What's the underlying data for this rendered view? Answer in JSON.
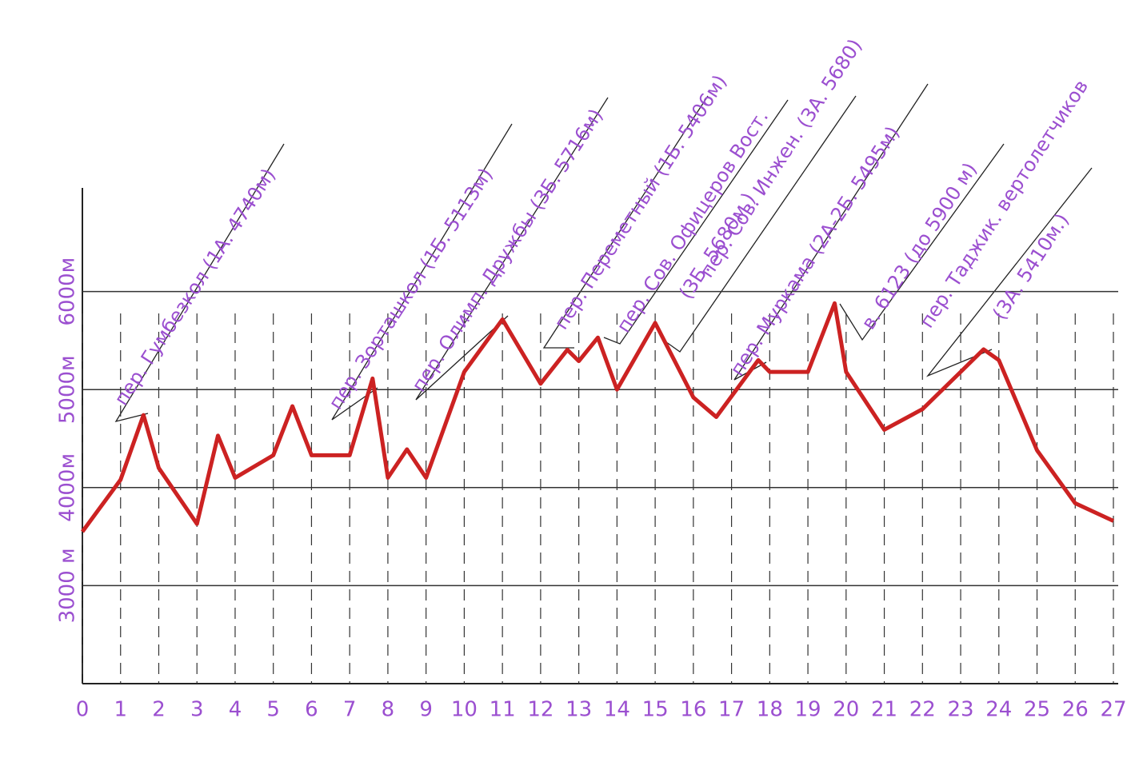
{
  "chart_data": {
    "type": "line",
    "x": [
      0,
      1,
      1.6,
      2,
      3,
      3.55,
      4,
      5,
      5.5,
      6,
      7,
      7.6,
      8,
      8.5,
      9,
      10,
      11,
      12,
      12.7,
      13,
      13.5,
      14,
      15,
      16,
      16.6,
      17.7,
      18,
      19,
      19.7,
      20,
      21,
      22,
      23,
      23.6,
      24,
      25,
      26,
      27
    ],
    "values": [
      3550,
      4080,
      4740,
      4200,
      3630,
      4530,
      4100,
      4330,
      4830,
      4330,
      4330,
      5113,
      4100,
      4390,
      4100,
      5180,
      5716,
      5060,
      5406,
      5290,
      5530,
      5000,
      5680,
      4920,
      4720,
      5300,
      5180,
      5180,
      5880,
      5180,
      4590,
      4800,
      5180,
      5410,
      5300,
      4380,
      3840,
      3660
    ],
    "color": "#cc2222",
    "xlim": [
      0,
      27
    ],
    "xticks": [
      0,
      1,
      2,
      3,
      4,
      5,
      6,
      7,
      8,
      9,
      10,
      11,
      12,
      13,
      14,
      15,
      16,
      17,
      18,
      19,
      20,
      21,
      22,
      23,
      24,
      25,
      26,
      27
    ],
    "ylim": [
      2000,
      7000
    ],
    "yticks": [
      {
        "value": 3000,
        "label": "3000 м"
      },
      {
        "value": 4000,
        "label": "4000м"
      },
      {
        "value": 5000,
        "label": "5000м"
      },
      {
        "value": 6000,
        "label": "6000м"
      }
    ],
    "grid": true,
    "annotations": [
      "пер. Гумбезкол (1А. 4740м)",
      "пер. Зорташкол (1Б. 5113м)",
      "пер. Олимп. Дружбы (3Б. 5716м)",
      "пер. Переметный (1Б. 5406м)",
      "пер. Сов. Офицеров Вост.",
      "(3Б. 5680м.)",
      "пер. Сов. Инжен. (3А. 5680)",
      "пер. Муркама (2А-2Б. 5495м)",
      "в. 6123 (до 5900 м)",
      "пер. Таджик. вертолетчиков",
      "(3А. 5410м.)"
    ]
  }
}
